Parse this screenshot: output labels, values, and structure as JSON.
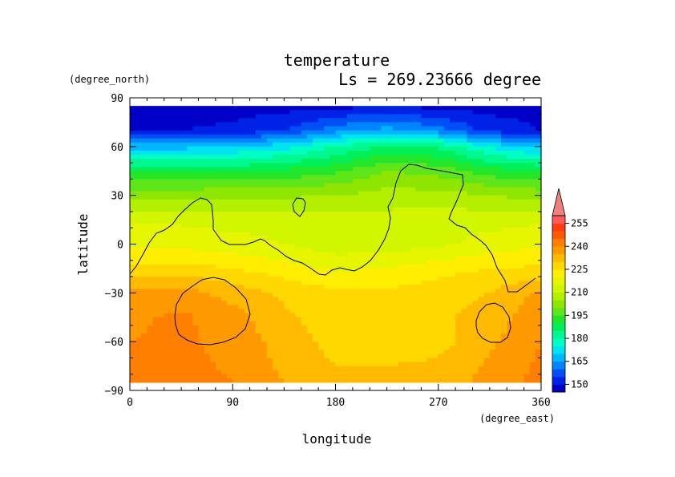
{
  "chart_data": {
    "type": "contour-map",
    "title": "temperature",
    "subtitle": "Ls = 269.23666 degree",
    "xlabel": "longitude",
    "ylabel": "latitude",
    "x_unit": "(degree_east)",
    "y_unit": "(degree_north)",
    "xlim": [
      0,
      360
    ],
    "ylim": [
      -90,
      90
    ],
    "data_lat_range": [
      -85,
      85
    ],
    "x_ticks": [
      "0",
      "90",
      "180",
      "270",
      "360"
    ],
    "y_ticks": [
      "90",
      "60",
      "30",
      "0",
      "−30",
      "−60",
      "−90"
    ],
    "colorbar": {
      "labels": [
        "255",
        "240",
        "225",
        "210",
        "195",
        "180",
        "165",
        "150"
      ],
      "extend": "max",
      "levels": [
        145,
        150,
        155,
        160,
        165,
        170,
        175,
        180,
        185,
        190,
        195,
        200,
        205,
        210,
        215,
        220,
        225,
        230,
        235,
        240,
        245,
        250,
        255,
        260
      ],
      "colors": [
        "#0000c8",
        "#0022e6",
        "#0050f5",
        "#0084ff",
        "#00b6ff",
        "#00e3f0",
        "#00ffc4",
        "#00f891",
        "#00f05a",
        "#22e629",
        "#5ee61a",
        "#8ee600",
        "#b2f000",
        "#d2f500",
        "#e6f500",
        "#ffee00",
        "#ffd800",
        "#ffba00",
        "#ff9900",
        "#ff7f00",
        "#ff5a00",
        "#ff3c14",
        "#ff5a5a",
        "#f08080"
      ]
    },
    "grid": false,
    "temperature_grid": {
      "lon": [
        0,
        45,
        90,
        135,
        180,
        225,
        270,
        315,
        360
      ],
      "lat": [
        85,
        70,
        60,
        45,
        30,
        15,
        0,
        -15,
        -30,
        -45,
        -60,
        -75,
        -85
      ],
      "values": [
        [
          148,
          148,
          148,
          148,
          148,
          150,
          148,
          148,
          148
        ],
        [
          150,
          150,
          151,
          155,
          163,
          167,
          162,
          153,
          150
        ],
        [
          168,
          168,
          170,
          173,
          180,
          186,
          184,
          174,
          168
        ],
        [
          190,
          190,
          189,
          191,
          194,
          200,
          198,
          192,
          190
        ],
        [
          203,
          203,
          204,
          204,
          205,
          207,
          207,
          205,
          203
        ],
        [
          214,
          214,
          213,
          213,
          212,
          212,
          213,
          213,
          214
        ],
        [
          219,
          218,
          217,
          215,
          212,
          212,
          214,
          217,
          219
        ],
        [
          226,
          227,
          225,
          222,
          219,
          220,
          223,
          225,
          226
        ],
        [
          236,
          237,
          233,
          229,
          226,
          226,
          228,
          230,
          236
        ],
        [
          239,
          241,
          237,
          231,
          227,
          227,
          229,
          232,
          239
        ],
        [
          240,
          241,
          238,
          233,
          228,
          227,
          228,
          234,
          240
        ],
        [
          241,
          242,
          239,
          234,
          230,
          230,
          231,
          236,
          241
        ],
        [
          242,
          243,
          240,
          235,
          231,
          231,
          232,
          237,
          242
        ]
      ]
    }
  }
}
